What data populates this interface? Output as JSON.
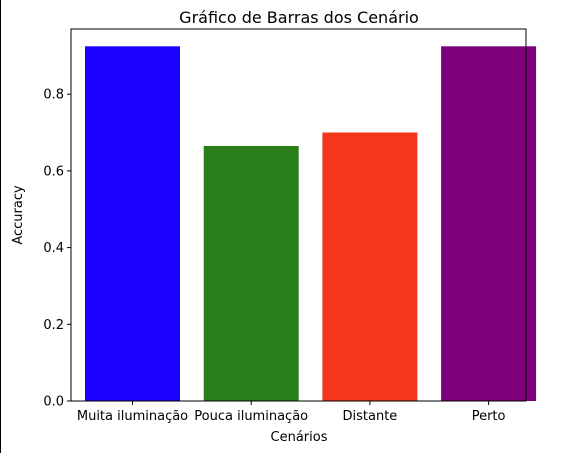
{
  "chart_data": {
    "type": "bar",
    "title": "Gráfico de Barras dos Cenário",
    "xlabel": "Cenários",
    "ylabel": "Accuracy",
    "ylim": [
      0,
      0.97
    ],
    "yticks": [
      "0.0",
      "0.2",
      "0.4",
      "0.6",
      "0.8"
    ],
    "grid": false,
    "categories": [
      "Muita iluminação",
      "Pouca iluminação",
      "Distante",
      "Perto"
    ],
    "values": [
      0.925,
      0.665,
      0.7,
      0.925
    ],
    "colors": [
      "#1a00ff",
      "#2a7e1a",
      "#f4361b",
      "#7c007c"
    ]
  }
}
